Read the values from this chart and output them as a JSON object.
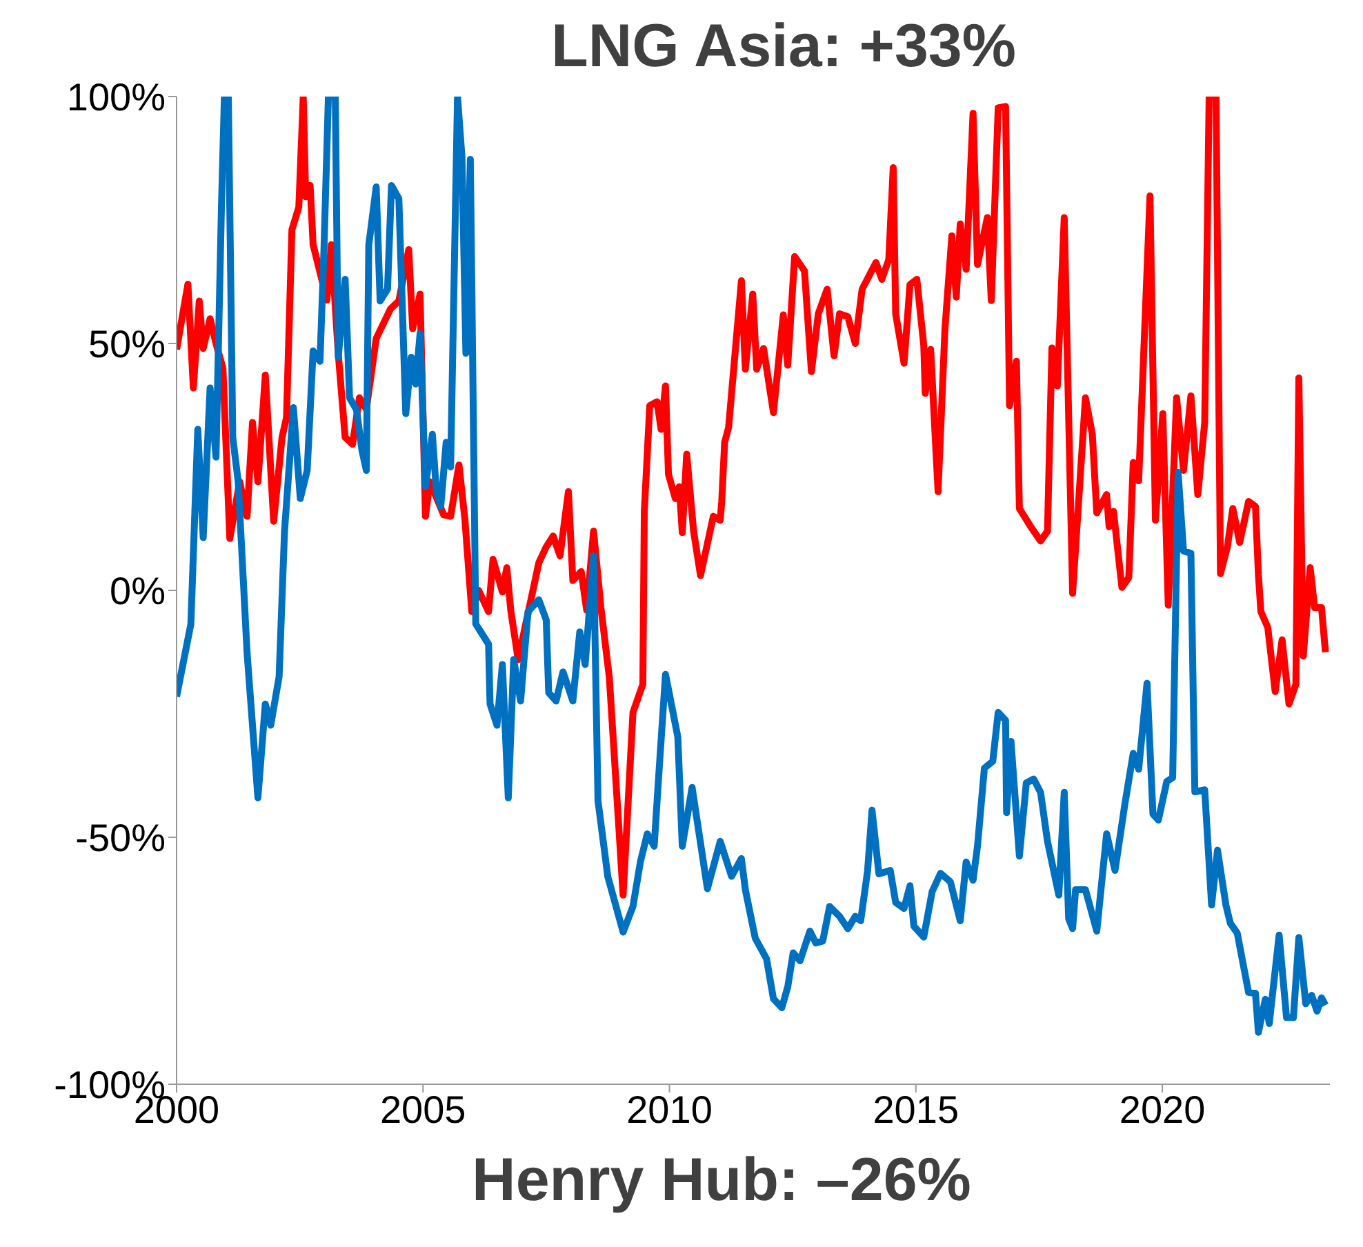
{
  "chart_data": {
    "type": "line",
    "annotations": [
      "LNG Asia: +33%",
      "Henry Hub: –26%"
    ],
    "xlim": [
      2000,
      2023.4
    ],
    "xticks": [
      2000,
      2005,
      2010,
      2015,
      2020
    ],
    "ylim": [
      -100,
      100
    ],
    "yticks": [
      {
        "value": -100,
        "label": "-100%"
      },
      {
        "value": -50,
        "label": "-50%"
      },
      {
        "value": 0,
        "label": "0%"
      },
      {
        "value": 50,
        "label": "50%"
      },
      {
        "value": 100,
        "label": "100%"
      }
    ],
    "series": [
      {
        "color": "#ff0000",
        "x": [
          2000,
          2000.23,
          2000.34,
          2000.46,
          2000.54,
          2000.68,
          2000.8,
          2000.94,
          2001.08,
          2001.28,
          2001.43,
          2001.54,
          2001.65,
          2001.8,
          2001.97,
          2002.14,
          2002.23,
          2002.34,
          2002.48,
          2002.57,
          2002.62,
          2002.71,
          2002.77,
          2003.05,
          2003.14,
          2003.28,
          2003.42,
          2003.57,
          2003.71,
          2003.85,
          2004.05,
          2004.34,
          2004.51,
          2004.71,
          2004.79,
          2004.94,
          2005.05,
          2005.14,
          2005.42,
          2005.56,
          2005.73,
          2005.85,
          2005.99,
          2006.13,
          2006.33,
          2006.42,
          2006.61,
          2006.7,
          2006.78,
          2006.93,
          2007.35,
          2007.5,
          2007.64,
          2007.78,
          2007.95,
          2008.04,
          2008.21,
          2008.32,
          2008.46,
          2008.61,
          2008.78,
          2009.06,
          2009.26,
          2009.46,
          2009.49,
          2009.6,
          2009.75,
          2009.83,
          2009.92,
          2009.98,
          2010.12,
          2010.2,
          2010.26,
          2010.35,
          2010.49,
          2010.63,
          2010.89,
          2011.03,
          2011.06,
          2011.12,
          2011.2,
          2011.46,
          2011.54,
          2011.69,
          2011.77,
          2011.91,
          2012.11,
          2012.31,
          2012.4,
          2012.54,
          2012.74,
          2012.88,
          2013.02,
          2013.2,
          2013.34,
          2013.45,
          2013.62,
          2013.77,
          2013.91,
          2014.19,
          2014.31,
          2014.45,
          2014.54,
          2014.59,
          2014.76,
          2014.88,
          2015.02,
          2015.16,
          2015.19,
          2015.3,
          2015.45,
          2015.59,
          2015.73,
          2015.82,
          2015.9,
          2016.02,
          2016.16,
          2016.25,
          2016.45,
          2016.53,
          2016.67,
          2016.82,
          2016.9,
          2017.04,
          2017.1,
          2017.33,
          2017.53,
          2017.67,
          2017.76,
          2017.87,
          2018.01,
          2018.18,
          2018.44,
          2018.58,
          2018.67,
          2018.87,
          2018.92,
          2019.01,
          2019.18,
          2019.32,
          2019.41,
          2019.52,
          2019.75,
          2019.86,
          2020.01,
          2020.12,
          2020.29,
          2020.43,
          2020.58,
          2020.72,
          2020.86,
          2020.95,
          2021.09,
          2021.18,
          2021.32,
          2021.43,
          2021.57,
          2021.75,
          2021.89,
          2021.95,
          2022,
          2022.14,
          2022.29,
          2022.43,
          2022.57,
          2022.71,
          2022.77,
          2022.86,
          2023,
          2023.09,
          2023.23,
          2023.31
        ],
        "values": [
          48.8,
          62,
          41,
          58.6,
          49,
          55,
          50,
          45,
          10.5,
          22,
          15,
          34,
          22,
          43.6,
          14,
          31,
          35,
          73,
          77.6,
          100,
          79.7,
          82,
          70,
          58.8,
          70,
          48,
          31,
          29.6,
          39,
          36.7,
          51,
          57,
          58.6,
          69,
          53,
          60,
          15,
          22,
          15.3,
          15,
          25.4,
          14.4,
          -4.3,
          0,
          -4.3,
          6.3,
          -0.3,
          4.6,
          -4,
          -14,
          5.6,
          8.8,
          11,
          7,
          20,
          2,
          3.8,
          -4,
          12,
          -3.5,
          -17.6,
          -61.7,
          -24.7,
          -19,
          16,
          37.4,
          38.2,
          32.6,
          41.4,
          23.5,
          18.6,
          21,
          11.7,
          27.6,
          12,
          3,
          15,
          14.2,
          17.9,
          30,
          33,
          62.7,
          44.8,
          60,
          44.8,
          49,
          36,
          55.8,
          45.6,
          67.6,
          64.7,
          44.3,
          56,
          61,
          47.5,
          56,
          55.4,
          50,
          61,
          66.4,
          63,
          67,
          85.6,
          56,
          46,
          61.9,
          63,
          49.6,
          39.9,
          48.8,
          20,
          53,
          71.8,
          59.4,
          74.2,
          65,
          96.6,
          66,
          75.5,
          58.7,
          97.7,
          98,
          37.4,
          46.4,
          16.6,
          12.9,
          10,
          12,
          49.1,
          41.4,
          75.5,
          -0.6,
          39,
          31.6,
          15.7,
          19.4,
          12.9,
          16,
          0.6,
          2.6,
          25.9,
          22.2,
          79.9,
          14.2,
          35.8,
          -3,
          39,
          24.3,
          39.4,
          19.4,
          34,
          100,
          100,
          3.4,
          8.8,
          16.6,
          9.7,
          18,
          17,
          3.1,
          -4.3,
          -7.5,
          -20.5,
          -10,
          -23,
          -19,
          43,
          -13.3,
          4.6,
          -3.5,
          -3.5,
          -12.5
        ]
      },
      {
        "color": "#0070c0",
        "x": [
          2000,
          2000.29,
          2000.43,
          2000.54,
          2000.68,
          2000.8,
          2000.91,
          2000.97,
          2001.05,
          2001.14,
          2001.25,
          2001.43,
          2001.65,
          2001.8,
          2001.91,
          2002.08,
          2002.19,
          2002.37,
          2002.51,
          2002.65,
          2002.77,
          2002.91,
          2002.99,
          2003.08,
          2003.22,
          2003.28,
          2003.42,
          2003.51,
          2003.65,
          2003.76,
          2003.85,
          2003.9,
          2004.05,
          2004.13,
          2004.28,
          2004.36,
          2004.51,
          2004.65,
          2004.76,
          2004.85,
          2004.94,
          2005.05,
          2005.19,
          2005.27,
          2005.36,
          2005.47,
          2005.56,
          2005.7,
          2005.79,
          2005.87,
          2005.96,
          2006.07,
          2006.33,
          2006.36,
          2006.5,
          2006.61,
          2006.73,
          2006.84,
          2006.98,
          2007.13,
          2007.35,
          2007.5,
          2007.55,
          2007.7,
          2007.84,
          2008.04,
          2008.18,
          2008.29,
          2008.46,
          2008.55,
          2008.75,
          2009.06,
          2009.26,
          2009.41,
          2009.55,
          2009.69,
          2009.78,
          2009.92,
          2010.17,
          2010.26,
          2010.46,
          2010.77,
          2011.03,
          2011.26,
          2011.46,
          2011.54,
          2011.74,
          2011.97,
          2012.11,
          2012.28,
          2012.4,
          2012.51,
          2012.65,
          2012.85,
          2012.97,
          2013.11,
          2013.25,
          2013.45,
          2013.62,
          2013.77,
          2013.88,
          2014.02,
          2014.11,
          2014.25,
          2014.48,
          2014.59,
          2014.76,
          2014.88,
          2014.96,
          2015.16,
          2015.33,
          2015.5,
          2015.7,
          2015.9,
          2016.02,
          2016.16,
          2016.25,
          2016.39,
          2016.56,
          2016.67,
          2016.82,
          2016.84,
          2016.93,
          2017.1,
          2017.24,
          2017.39,
          2017.53,
          2017.67,
          2017.9,
          2018.01,
          2018.1,
          2018.18,
          2018.24,
          2018.44,
          2018.67,
          2018.87,
          2019.04,
          2019.24,
          2019.41,
          2019.52,
          2019.69,
          2019.81,
          2019.92,
          2020.09,
          2020.21,
          2020.32,
          2020.43,
          2020.58,
          2020.66,
          2020.86,
          2021,
          2021.12,
          2021.29,
          2021.38,
          2021.52,
          2021.75,
          2021.89,
          2021.95,
          2022.09,
          2022.17,
          2022.37,
          2022.52,
          2022.66,
          2022.77,
          2022.91,
          2023.03,
          2023.14,
          2023.23,
          2023.31
        ],
        "values": [
          -21.5,
          -6.8,
          32.6,
          10.7,
          41,
          27,
          77.6,
          100,
          100,
          31,
          22,
          -12.6,
          -42,
          -23,
          -27.3,
          -17.5,
          12,
          37,
          18.6,
          24.3,
          48.5,
          46.4,
          69,
          100,
          100,
          47.2,
          63,
          39,
          36.6,
          28.4,
          24.3,
          70,
          81.7,
          58.6,
          61,
          82,
          79.3,
          35.8,
          47.2,
          41.8,
          52,
          21,
          31.6,
          20.2,
          17,
          30,
          25,
          100,
          87.8,
          48,
          87.3,
          -6.8,
          -10.9,
          -23,
          -27.3,
          -15,
          -42,
          -14,
          -22.4,
          -4.3,
          -1.9,
          -6,
          -20.7,
          -22.4,
          -16.5,
          -22.4,
          -8.4,
          -15,
          7,
          -42.6,
          -58,
          -69.2,
          -64,
          -55,
          -49.3,
          -51.8,
          -37.9,
          -17,
          -29.7,
          -51.8,
          -39.9,
          -60.4,
          -50.8,
          -57.9,
          -54.3,
          -60.6,
          -70.4,
          -74.6,
          -82.7,
          -84.5,
          -80.3,
          -73.4,
          -75,
          -69,
          -71.4,
          -71,
          -64,
          -66,
          -68.5,
          -66,
          -66.9,
          -56.8,
          -44.5,
          -57.4,
          -56.7,
          -63.2,
          -64.4,
          -59.8,
          -68,
          -70.2,
          -61,
          -57.3,
          -59,
          -66.9,
          -55,
          -58.7,
          -51.8,
          -36,
          -34.6,
          -24.7,
          -26.3,
          -45,
          -30.6,
          -53.8,
          -39,
          -38.2,
          -40.9,
          -50.8,
          -61.7,
          -40.9,
          -66.5,
          -68.5,
          -60.6,
          -60.6,
          -69,
          -49.3,
          -56.7,
          -43.3,
          -33,
          -36.2,
          -18.8,
          -45.3,
          -46.5,
          -38.7,
          -37.9,
          23.9,
          8,
          7.5,
          -40.8,
          -40.4,
          -63.7,
          -52.6,
          -63.7,
          -67.4,
          -69.4,
          -81.4,
          -81.6,
          -89.5,
          -82.8,
          -87.7,
          -69.8,
          -86.5,
          -86.5,
          -70.3,
          -83.7,
          -82,
          -85.2,
          -82.5,
          -84
        ]
      }
    ]
  }
}
